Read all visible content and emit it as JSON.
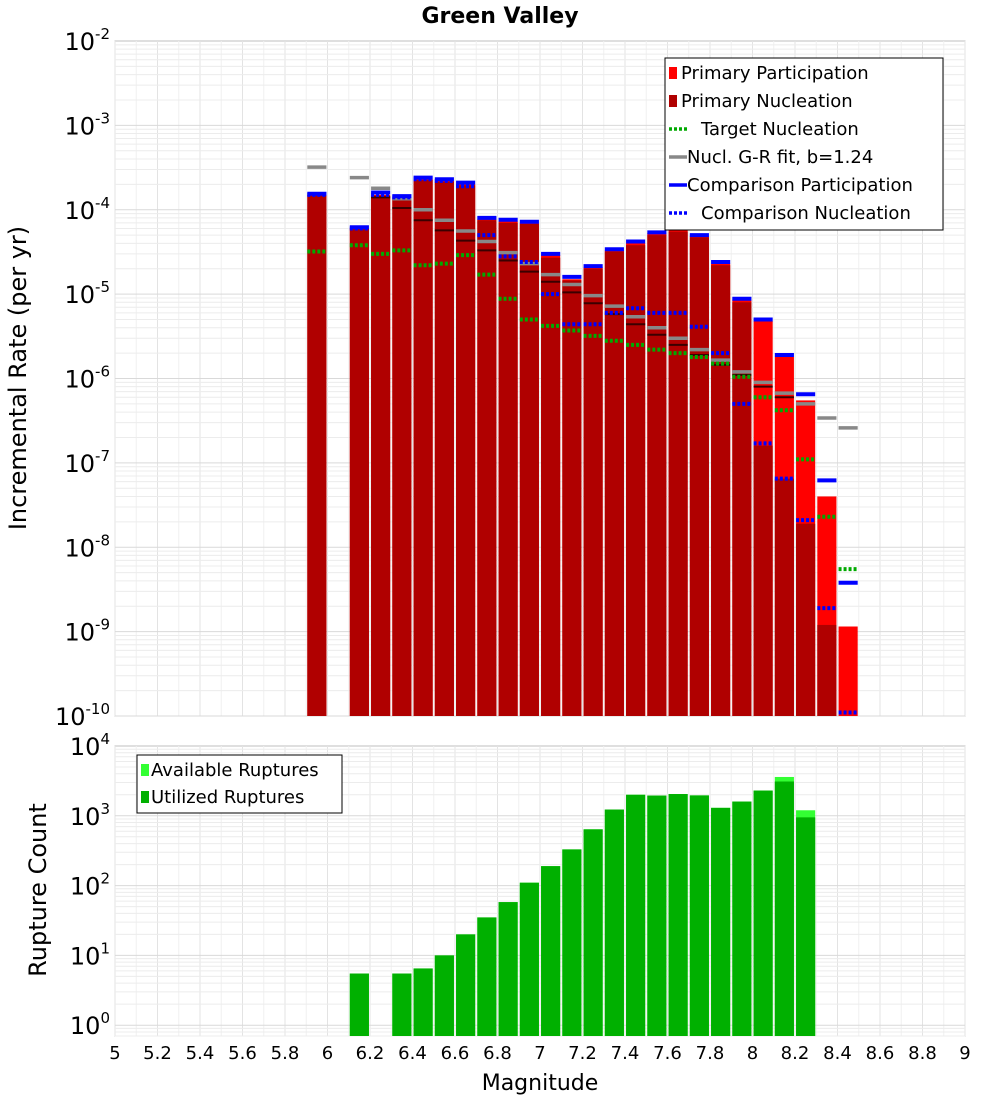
{
  "chart_data": [
    {
      "type": "bar",
      "title": "Green Valley",
      "xlabel": "",
      "ylabel": "Incremental Rate (per yr)",
      "yscale": "log",
      "ylim": [
        1e-10,
        0.01
      ],
      "xlim": [
        5,
        9
      ],
      "grid": true,
      "legend_position": "top-right",
      "y_tick_labels": [
        {
          "base": "10",
          "exp": "-10"
        },
        {
          "base": "10",
          "exp": "-9"
        },
        {
          "base": "10",
          "exp": "-8"
        },
        {
          "base": "10",
          "exp": "-7"
        },
        {
          "base": "10",
          "exp": "-6"
        },
        {
          "base": "10",
          "exp": "-5"
        },
        {
          "base": "10",
          "exp": "-4"
        },
        {
          "base": "10",
          "exp": "-3"
        },
        {
          "base": "10",
          "exp": "-2"
        }
      ],
      "legend": [
        {
          "label": "Primary Participation",
          "color": "#ff0000",
          "style": "box"
        },
        {
          "label": "Primary Nucleation",
          "color": "#b00000",
          "style": "box"
        },
        {
          "label": "Target Nucleation",
          "color": "#00aa00",
          "style": "dotted"
        },
        {
          "label": "Nucl. G-R fit, b=1.24",
          "color": "#888888",
          "style": "line"
        },
        {
          "label": "Comparison Participation",
          "color": "#0000ff",
          "style": "line"
        },
        {
          "label": "Comparison Nucleation",
          "color": "#0000ff",
          "style": "dotted"
        }
      ],
      "x": [
        5.95,
        6.15,
        6.25,
        6.35,
        6.45,
        6.55,
        6.65,
        6.75,
        6.85,
        6.95,
        7.05,
        7.15,
        7.25,
        7.35,
        7.45,
        7.55,
        7.65,
        7.75,
        7.85,
        7.95,
        8.05,
        8.15,
        8.25,
        8.35,
        8.45
      ],
      "series": [
        {
          "name": "Primary Participation",
          "values": [
            0.00015,
            6e-05,
            0.00015,
            0.00014,
            0.00023,
            0.00022,
            0.0002,
            7.8e-05,
            7.3e-05,
            7e-05,
            2.9e-05,
            1.5e-05,
            2.1e-05,
            3.3e-05,
            4e-05,
            5.3e-05,
            6.5e-05,
            4.9e-05,
            2.3e-05,
            8.6e-06,
            4.8e-06,
            1.8e-06,
            5.5e-07,
            4e-08,
            1.15e-09
          ]
        },
        {
          "name": "Primary Nucleation",
          "values": [
            0.00015,
            6e-05,
            0.000145,
            0.000138,
            0.000225,
            0.000215,
            0.000195,
            7.5e-05,
            7e-05,
            6.8e-05,
            2.7e-05,
            1.45e-05,
            2e-05,
            3.2e-05,
            3.8e-05,
            5e-05,
            5.5e-05,
            4.7e-05,
            2.2e-05,
            8e-06,
            1.6e-07,
            6.5e-08,
            1.9e-08,
            1.2e-09,
            null
          ]
        },
        {
          "name": "Primary Nucleation (dark marks)",
          "values": [
            null,
            null,
            0.00014,
            0.000105,
            7.5e-05,
            5.7e-05,
            4.3e-05,
            3.3e-05,
            2.5e-05,
            1.85e-05,
            1.4e-05,
            1.05e-05,
            7.8e-06,
            5.8e-06,
            4.4e-06,
            3.3e-06,
            2.5e-06,
            1.9e-06,
            1.45e-06,
            1.1e-06,
            8e-07,
            6e-07,
            null,
            null,
            null
          ]
        },
        {
          "name": "Target Nucleation",
          "values": [
            3.2e-05,
            3.8e-05,
            3e-05,
            3.3e-05,
            2.2e-05,
            2.3e-05,
            2.9e-05,
            1.7e-05,
            8.8e-06,
            5e-06,
            4.2e-06,
            3.7e-06,
            3.2e-06,
            2.8e-06,
            2.5e-06,
            2.2e-06,
            2e-06,
            1.8e-06,
            1.5e-06,
            1.05e-06,
            6e-07,
            4.2e-07,
            1.1e-07,
            2.3e-08,
            5.5e-09
          ]
        },
        {
          "name": "Nucl. G-R fit, b=1.24",
          "values": [
            0.00032,
            0.00024,
            0.00018,
            0.000135,
            0.0001,
            7.5e-05,
            5.6e-05,
            4.2e-05,
            3.1e-05,
            2.3e-05,
            1.7e-05,
            1.3e-05,
            9.6e-06,
            7.2e-06,
            5.4e-06,
            4e-06,
            3e-06,
            2.2e-06,
            1.65e-06,
            1.2e-06,
            9e-07,
            6.7e-07,
            5e-07,
            3.4e-07,
            2.6e-07
          ]
        },
        {
          "name": "Comparison Participation",
          "values": [
            0.000155,
            6.2e-05,
            0.00016,
            0.000145,
            0.00024,
            0.00023,
            0.00021,
            8e-05,
            7.6e-05,
            7.2e-05,
            3e-05,
            1.6e-05,
            2.15e-05,
            3.4e-05,
            4.2e-05,
            5.4e-05,
            6e-05,
            5e-05,
            2.4e-05,
            8.8e-06,
            5e-06,
            1.9e-06,
            6.5e-07,
            6.2e-08,
            3.8e-09
          ]
        },
        {
          "name": "Comparison Nucleation",
          "values": [
            0.00015,
            6e-05,
            0.00015,
            0.00014,
            0.00023,
            0.00022,
            0.00019,
            5e-05,
            2.8e-05,
            2.4e-05,
            1e-05,
            4.4e-06,
            4.4e-06,
            6e-06,
            6.8e-06,
            6e-06,
            6e-06,
            4.1e-06,
            2e-06,
            5e-07,
            1.7e-07,
            6.5e-08,
            2.1e-08,
            1.9e-09,
            1.1e-10
          ]
        }
      ]
    },
    {
      "type": "bar",
      "title": "",
      "xlabel": "Magnitude",
      "ylabel": "Rupture Count",
      "yscale": "log",
      "ylim": [
        0.7,
        10000
      ],
      "xlim": [
        5,
        9
      ],
      "grid": true,
      "legend_position": "top-left",
      "x_ticks": [
        5,
        5.2,
        5.4,
        5.6,
        5.8,
        6,
        6.2,
        6.4,
        6.6,
        6.8,
        7,
        7.2,
        7.4,
        7.6,
        7.8,
        8,
        8.2,
        8.4,
        8.6,
        8.8,
        9
      ],
      "x_tick_labels": [
        "5",
        "5.2",
        "5.4",
        "5.6",
        "5.8",
        "6",
        "6.2",
        "6.4",
        "6.6",
        "6.8",
        "7",
        "7.2",
        "7.4",
        "7.6",
        "7.8",
        "8",
        "8.2",
        "8.4",
        "8.6",
        "8.8",
        "9"
      ],
      "y_ticks": [
        1,
        10,
        100,
        1000,
        10000
      ],
      "y_tick_labels": [
        {
          "base": "10",
          "exp": "0"
        },
        {
          "base": "10",
          "exp": "1"
        },
        {
          "base": "10",
          "exp": "2"
        },
        {
          "base": "10",
          "exp": "3"
        },
        {
          "base": "10",
          "exp": "4"
        }
      ],
      "legend": [
        {
          "label": "Available Ruptures",
          "color": "#33ff33"
        },
        {
          "label": "Utilized Ruptures",
          "color": "#00b000"
        }
      ],
      "x": [
        6.15,
        6.35,
        6.45,
        6.55,
        6.65,
        6.75,
        6.85,
        6.95,
        7.05,
        7.15,
        7.25,
        7.35,
        7.45,
        7.55,
        7.65,
        7.75,
        7.85,
        7.95,
        8.05,
        8.15,
        8.25
      ],
      "series": [
        {
          "name": "Available Ruptures",
          "values": [
            5.5,
            5.5,
            6.5,
            10,
            20,
            35,
            58,
            110,
            190,
            330,
            640,
            1230,
            2000,
            1950,
            2050,
            1960,
            1300,
            1600,
            2300,
            3600,
            1200
          ]
        },
        {
          "name": "Utilized Ruptures",
          "values": [
            5.5,
            5.5,
            6.5,
            10,
            20,
            35,
            58,
            110,
            190,
            330,
            640,
            1230,
            2000,
            1950,
            2050,
            1960,
            1300,
            1600,
            2300,
            3100,
            950
          ]
        }
      ]
    }
  ]
}
